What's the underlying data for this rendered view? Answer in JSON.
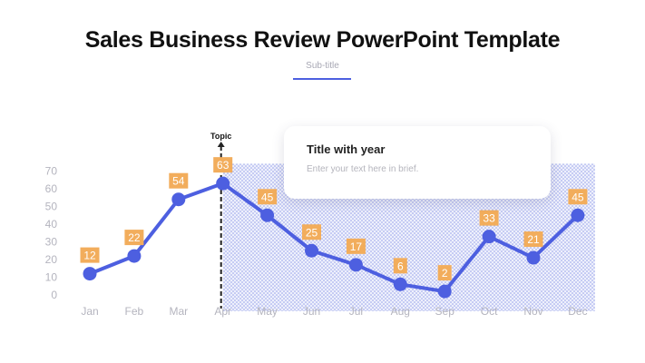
{
  "slide": {
    "title": "Sales Business Review PowerPoint Template",
    "subtitle": "Sub-title"
  },
  "card": {
    "title": "Title with year",
    "text": "Enter your text here in brief."
  },
  "colors": {
    "line": "#4d5fe0",
    "label_box": "#f2ad5c",
    "shade": "#4d5fe0",
    "axis_text": "#b4b4be",
    "marker_line": "#222222"
  },
  "chart_data": {
    "type": "line",
    "categories": [
      "Jan",
      "Feb",
      "Mar",
      "Apr",
      "May",
      "Jun",
      "Jul",
      "Aug",
      "Sep",
      "Oct",
      "Nov",
      "Dec"
    ],
    "values": [
      12,
      22,
      54,
      63,
      45,
      25,
      17,
      6,
      2,
      33,
      21,
      45
    ],
    "y_ticks": [
      "0",
      "10",
      "20",
      "30",
      "40",
      "50",
      "60",
      "70"
    ],
    "ylim": [
      0,
      70
    ],
    "marker": {
      "category": "Apr",
      "label": "Topic"
    },
    "shaded_region": {
      "from": "Apr",
      "to": "Dec"
    },
    "grid": false,
    "data_labels": true
  }
}
